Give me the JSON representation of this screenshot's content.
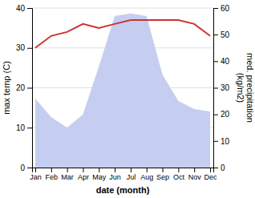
{
  "chart_data": {
    "type": "line",
    "xlabel": "date (month)",
    "ylabel": "max temp (C)",
    "y2label": "med. precipitation\n(kg/m2)",
    "categories": [
      "Jan",
      "Feb",
      "Mar",
      "Apr",
      "May",
      "Jun",
      "Jul",
      "Aug",
      "Sep",
      "Oct",
      "Nov",
      "Dec"
    ],
    "series": [
      {
        "type": "area",
        "axis": "y2",
        "color": "#c5cef0",
        "values": [
          26,
          19,
          15,
          20,
          38,
          57,
          58,
          57,
          35,
          25,
          22,
          21
        ]
      },
      {
        "type": "line",
        "color": "#cc3333",
        "values": [
          30,
          33,
          34,
          36,
          35,
          36,
          37,
          37,
          37,
          37,
          36,
          33
        ]
      }
    ],
    "ylim": [
      0,
      40
    ],
    "yticks": [
      0,
      10,
      20,
      30,
      40
    ],
    "y2lim": [
      0,
      60
    ],
    "y2ticks": [
      0,
      10,
      20,
      30,
      40,
      50,
      60
    ],
    "grid": true
  }
}
